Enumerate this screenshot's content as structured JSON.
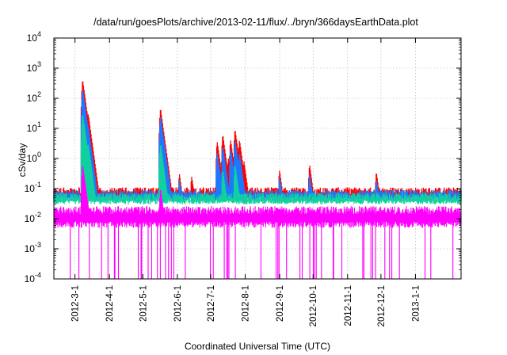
{
  "chart_data": {
    "type": "line",
    "title": "/data/run/goesPlots/archive/2013-02-11/flux/../bryn/366daysEarthData.plot",
    "xlabel": "Coordinated Universal Time (UTC)",
    "ylabel": "cSv/day",
    "y_scale": "log",
    "ylim": [
      0.0001,
      10000
    ],
    "xlim": [
      "2012-02-11",
      "2013-02-11"
    ],
    "grid": true,
    "x_ticks": [
      "2012-3-1",
      "2012-4-1",
      "2012-5-1",
      "2012-6-1",
      "2012-7-1",
      "2012-8-1",
      "2012-9-1",
      "2012-10-1",
      "2012-11-1",
      "2012-12-1",
      "2013-1-1"
    ],
    "y_ticks": [
      {
        "value": 0.0001,
        "base": "10",
        "exp": "-4"
      },
      {
        "value": 0.001,
        "base": "10",
        "exp": "-3"
      },
      {
        "value": 0.01,
        "base": "10",
        "exp": "-2"
      },
      {
        "value": 0.1,
        "base": "10",
        "exp": "-1"
      },
      {
        "value": 1,
        "base": "10",
        "exp": "0"
      },
      {
        "value": 10,
        "base": "10",
        "exp": "1"
      },
      {
        "value": 100,
        "base": "10",
        "exp": "2"
      },
      {
        "value": 1000,
        "base": "10",
        "exp": "3"
      },
      {
        "value": 10000,
        "base": "10",
        "exp": "4"
      }
    ],
    "series": [
      {
        "color": "#ff0000",
        "baseline": 0.085,
        "peaks": [
          {
            "date": "2012-03-08",
            "value": 400
          },
          {
            "date": "2012-03-13",
            "value": 30
          },
          {
            "date": "2012-05-17",
            "value": 45
          },
          {
            "date": "2012-06-03",
            "value": 0.3
          },
          {
            "date": "2012-06-14",
            "value": 0.25
          },
          {
            "date": "2012-07-07",
            "value": 3.5
          },
          {
            "date": "2012-07-12",
            "value": 6
          },
          {
            "date": "2012-07-17",
            "value": 1
          },
          {
            "date": "2012-07-19",
            "value": 4
          },
          {
            "date": "2012-07-23",
            "value": 9
          },
          {
            "date": "2012-07-27",
            "value": 4
          },
          {
            "date": "2012-07-31",
            "value": 0.8
          },
          {
            "date": "2012-09-01",
            "value": 0.4
          },
          {
            "date": "2012-09-28",
            "value": 0.6
          },
          {
            "date": "2012-11-27",
            "value": 0.35
          }
        ]
      },
      {
        "color": "#1e78ff",
        "baseline": 0.07,
        "peaks": [
          {
            "date": "2012-03-08",
            "value": 200
          },
          {
            "date": "2012-03-13",
            "value": 12
          },
          {
            "date": "2012-05-17",
            "value": 25
          },
          {
            "date": "2012-06-03",
            "value": 0.2
          },
          {
            "date": "2012-07-07",
            "value": 1.5
          },
          {
            "date": "2012-07-12",
            "value": 2.5
          },
          {
            "date": "2012-07-19",
            "value": 2
          },
          {
            "date": "2012-07-23",
            "value": 4
          },
          {
            "date": "2012-07-27",
            "value": 1.5
          },
          {
            "date": "2012-09-01",
            "value": 0.25
          },
          {
            "date": "2012-09-28",
            "value": 0.3
          },
          {
            "date": "2012-11-27",
            "value": 0.2
          }
        ]
      },
      {
        "color": "#10d0a0",
        "baseline": 0.055,
        "peaks": [
          {
            "date": "2012-03-08",
            "value": 30
          },
          {
            "date": "2012-03-13",
            "value": 3
          },
          {
            "date": "2012-05-17",
            "value": 3
          },
          {
            "date": "2012-07-12",
            "value": 0.4
          },
          {
            "date": "2012-07-23",
            "value": 0.6
          }
        ]
      },
      {
        "color": "#ff00ff",
        "baseline": 0.02,
        "peaks": [
          {
            "date": "2012-03-08",
            "value": 0.6
          },
          {
            "date": "2012-05-17",
            "value": 0.1
          }
        ]
      }
    ]
  }
}
